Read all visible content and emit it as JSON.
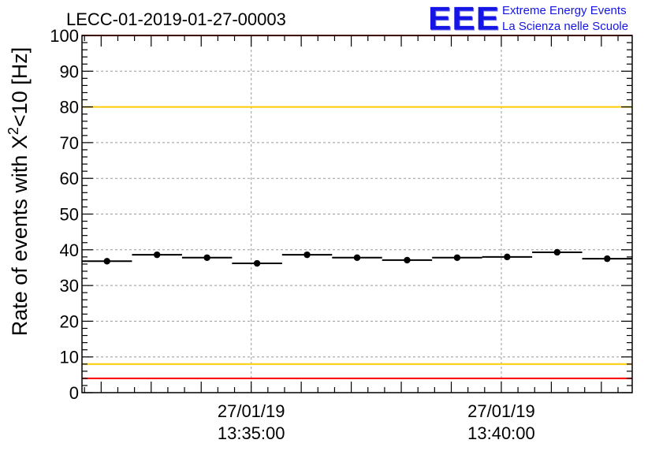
{
  "title": "LECC-01-2019-01-27-00003",
  "logo": {
    "mark": "EEE",
    "line1": "Extreme Energy Events",
    "line2": "La Scienza nelle Scuole"
  },
  "chart_data": {
    "type": "scatter",
    "xlabel": "",
    "ylabel": "Rate of events with X²<10 [Hz]",
    "ylim": [
      0,
      100
    ],
    "yticks": [
      0,
      10,
      20,
      30,
      40,
      50,
      60,
      70,
      80,
      90,
      100
    ],
    "xticks": [
      {
        "date": "27/01/19",
        "time": "13:35:00"
      },
      {
        "date": "27/01/19",
        "time": "13:40:00"
      }
    ],
    "x_range": [
      "13:31:37",
      "13:42:37"
    ],
    "grid": true,
    "series": [
      {
        "x": [
          "13:32:07",
          "13:33:07",
          "13:34:07",
          "13:35:07",
          "13:36:07",
          "13:37:07",
          "13:38:07",
          "13:39:07",
          "13:40:07",
          "13:41:07",
          "13:42:07"
        ],
        "y": [
          36.8,
          38.6,
          37.8,
          36.2,
          38.6,
          37.8,
          37.1,
          37.8,
          38.0,
          39.3,
          37.5
        ],
        "bin_width_s": 60,
        "color": "#000000"
      }
    ],
    "reference_lines": [
      {
        "y": 80,
        "color": "#ffcc00"
      },
      {
        "y": 8,
        "color": "#ffcc00"
      },
      {
        "y": 100,
        "color": "#ff0000"
      },
      {
        "y": 4,
        "color": "#ff0000"
      }
    ]
  }
}
